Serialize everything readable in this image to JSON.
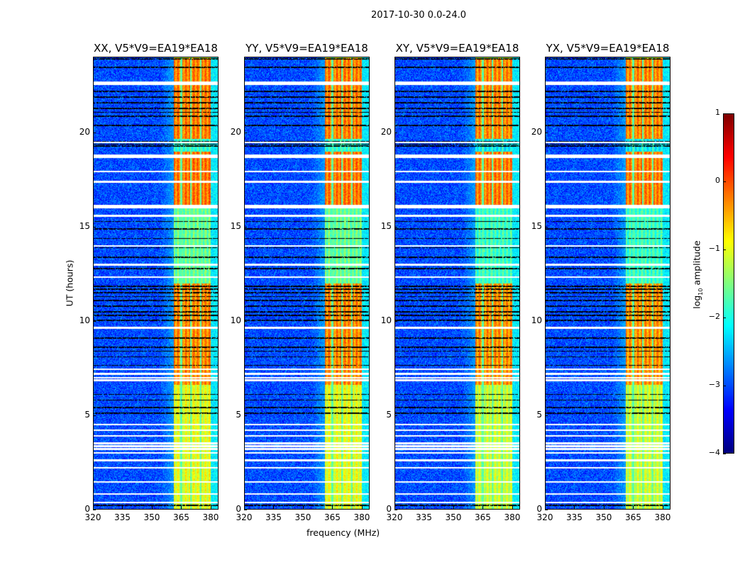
{
  "chart_data": {
    "type": "heatmap",
    "title": "2017-10-30 0.0-24.0",
    "panels": [
      {
        "title": "XX, V5*V9=EA19*EA18",
        "band_level": 1.0
      },
      {
        "title": "YY, V5*V9=EA19*EA18",
        "band_level": 1.0
      },
      {
        "title": "XY, V5*V9=EA19*EA18",
        "band_level": 0.85
      },
      {
        "title": "YX, V5*V9=EA19*EA18",
        "band_level": 0.8
      }
    ],
    "xlabel": "frequency (MHz)",
    "ylabel": "UT (hours)",
    "xlim": [
      320,
      384
    ],
    "ylim": [
      0,
      24
    ],
    "xticks": [
      "320",
      "335",
      "350",
      "365",
      "380"
    ],
    "xtick_values": [
      320,
      335,
      350,
      365,
      380
    ],
    "yticks": [
      "0",
      "5",
      "10",
      "15",
      "20"
    ],
    "ytick_values": [
      0,
      5,
      10,
      15,
      20
    ],
    "colorbar": {
      "label_main": "log",
      "label_sub": "10",
      "label_rest": " amplitude",
      "range": [
        -4,
        1
      ],
      "ticks": [
        "1",
        "0",
        "−1",
        "−2",
        "−3",
        "−4"
      ],
      "tick_values": [
        1,
        0,
        -1,
        -2,
        -3,
        -4
      ],
      "colormap": "jet"
    },
    "band_mhz": [
      361,
      380
    ],
    "band_gaps_mhz": [
      365,
      370,
      375
    ],
    "flagged_white_ut": [
      0.35,
      0.8,
      1.45,
      2.2,
      2.6,
      3.0,
      3.2,
      3.35,
      3.5,
      3.9,
      4.2,
      4.5,
      6.85,
      7.0,
      7.2,
      7.45,
      9.65,
      12.35,
      13.0,
      14.0,
      15.6,
      16.1,
      16.15,
      17.4,
      17.95,
      18.75,
      19.5,
      22.65
    ],
    "flagged_black_ut": [
      0.2,
      5.1,
      5.4,
      5.8,
      6.1,
      7.65,
      8.1,
      8.4,
      8.6,
      9.1,
      10.05,
      10.3,
      10.5,
      10.8,
      11.1,
      11.3,
      11.5,
      11.7,
      11.85,
      12.8,
      13.4,
      13.9,
      14.4,
      14.9,
      15.3,
      19.3,
      19.4,
      19.55,
      20.4,
      20.9,
      21.1,
      21.3,
      21.6,
      21.9,
      22.2,
      23.5,
      23.95
    ],
    "band_log_amp_by_ut": [
      {
        "from": 0,
        "to": 6.6,
        "value": -1.0
      },
      {
        "from": 6.6,
        "to": 12.0,
        "value": -0.3
      },
      {
        "from": 12.0,
        "to": 16.2,
        "value": -1.6
      },
      {
        "from": 16.2,
        "to": 19.0,
        "value": -0.2
      },
      {
        "from": 19.0,
        "to": 19.7,
        "value": -1.9
      },
      {
        "from": 19.7,
        "to": 24,
        "value": -0.25
      }
    ],
    "background_log_amp": -3.0
  }
}
